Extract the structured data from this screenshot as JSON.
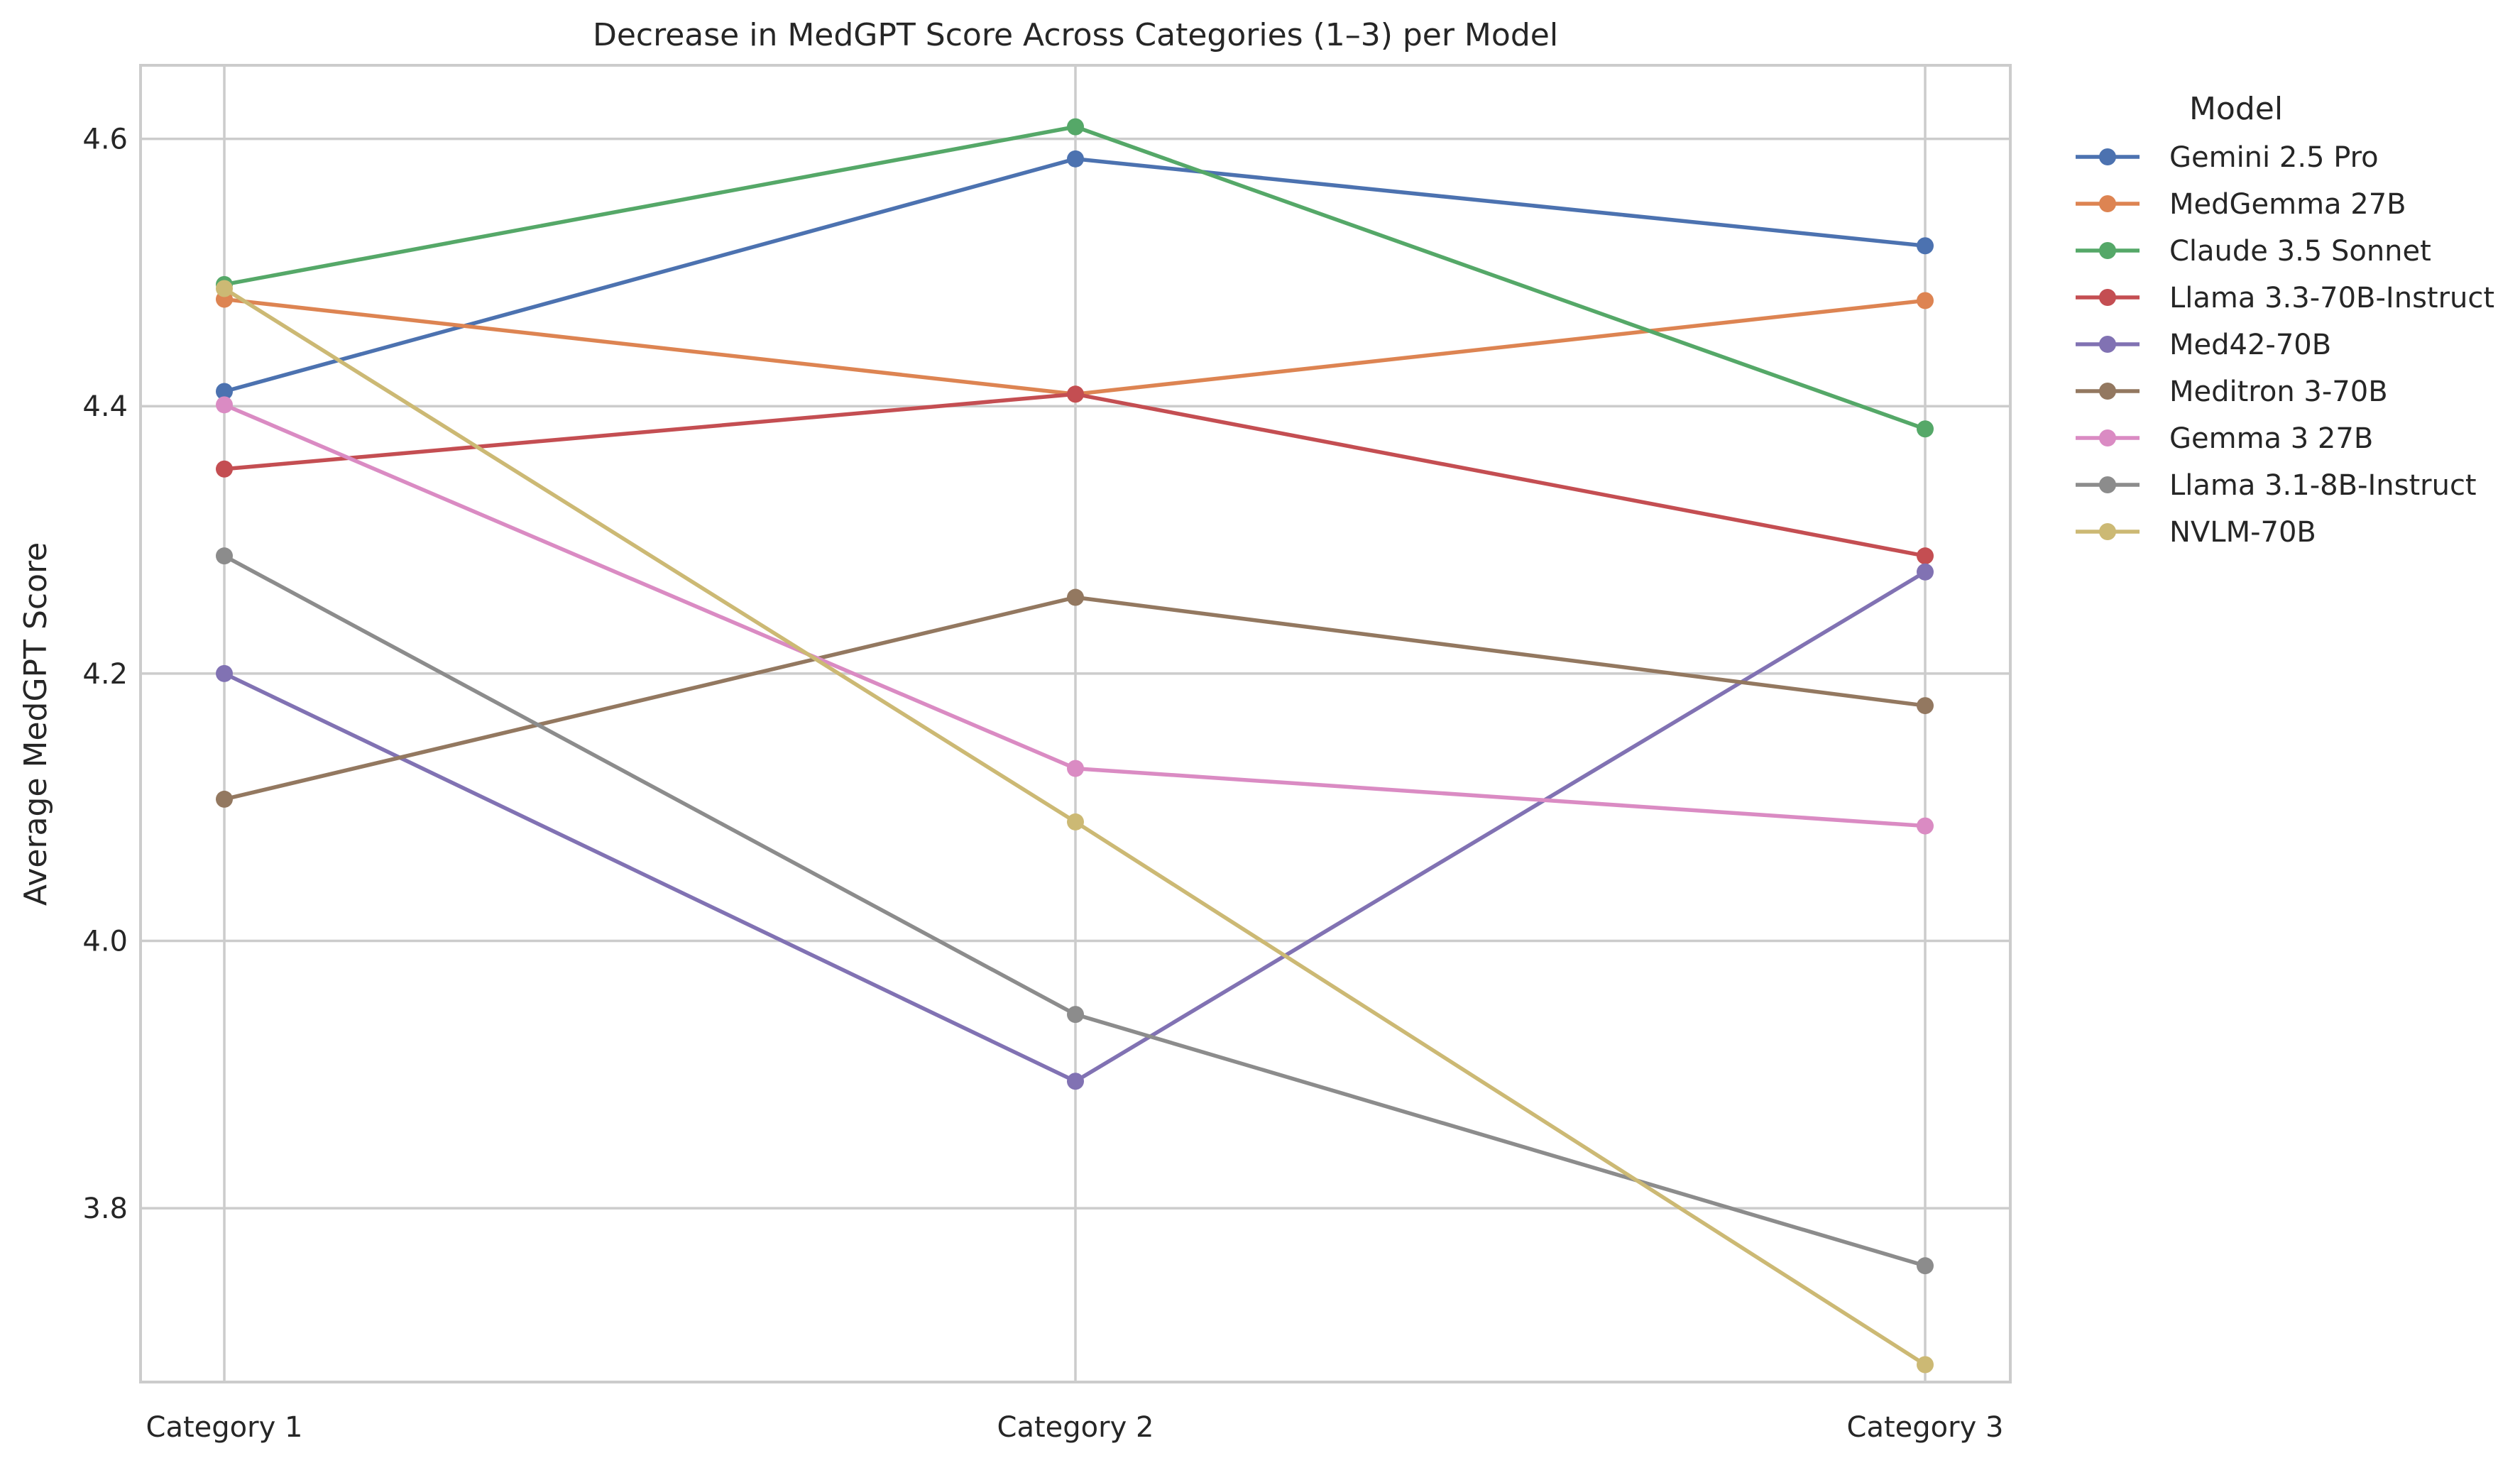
{
  "chart_data": {
    "type": "line",
    "title": "Decrease in MedGPT Score Across Categories (1–3) per Model",
    "xlabel": "",
    "ylabel": "Average MedGPT Score",
    "categories": [
      "Category 1",
      "Category 2",
      "Category 3"
    ],
    "ylim": [
      3.67,
      4.655
    ],
    "yticks": [
      3.8,
      4.0,
      4.2,
      4.4,
      4.6
    ],
    "ytick_labels": [
      "3.8",
      "4.0",
      "4.2",
      "4.4",
      "4.6"
    ],
    "grid": true,
    "legend_title": "Model",
    "legend_position": "outside right",
    "series": [
      {
        "name": "Gemini 2.5 Pro",
        "color": "#4c72b0",
        "values": [
          4.411,
          4.585,
          4.52
        ]
      },
      {
        "name": "MedGemma 27B",
        "color": "#dd8452",
        "values": [
          4.48,
          4.409,
          4.479
        ]
      },
      {
        "name": "Claude 3.5 Sonnet",
        "color": "#55a868",
        "values": [
          4.491,
          4.609,
          4.383
        ]
      },
      {
        "name": "Llama 3.3-70B-Instruct",
        "color": "#c44e52",
        "values": [
          4.353,
          4.409,
          4.288
        ]
      },
      {
        "name": "Med42-70B",
        "color": "#8172b3",
        "values": [
          4.2,
          3.895,
          4.276
        ]
      },
      {
        "name": "Meditron 3-70B",
        "color": "#937860",
        "values": [
          4.106,
          4.257,
          4.176
        ]
      },
      {
        "name": "Gemma 3 27B",
        "color": "#da8bc3",
        "values": [
          4.401,
          4.129,
          4.086
        ]
      },
      {
        "name": "Llama 3.1-8B-Instruct",
        "color": "#8c8c8c",
        "values": [
          4.288,
          3.945,
          3.757
        ]
      },
      {
        "name": "NVLM-70B",
        "color": "#ccb974",
        "values": [
          4.488,
          4.089,
          3.683
        ]
      }
    ]
  }
}
